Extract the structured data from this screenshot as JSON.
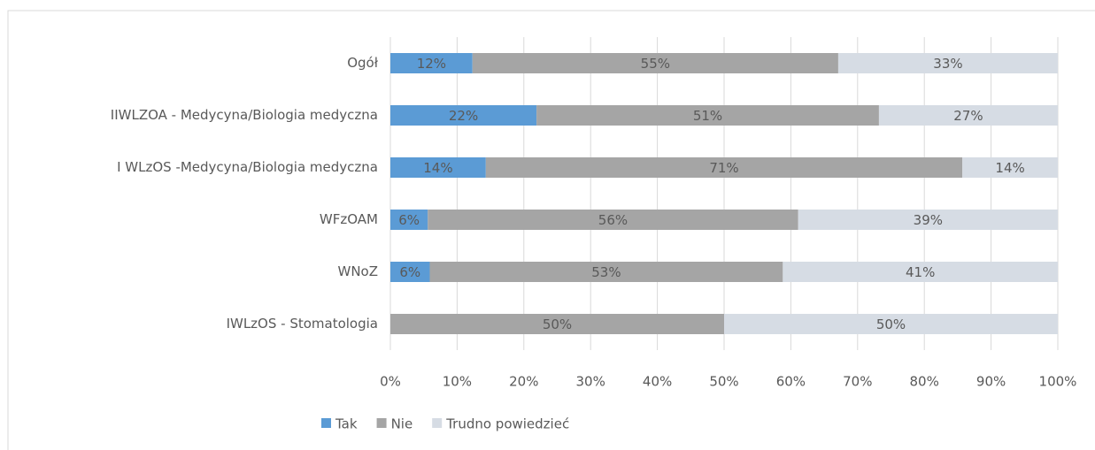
{
  "chart_data": {
    "type": "stacked-bar-horizontal",
    "categories": [
      "Ogół",
      "IIWLZOA - Medycyna/Biologia medyczna",
      "I WLzOS -Medycyna/Biologia medyczna",
      "WFzOAM",
      "WNoZ",
      "IWLzOS - Stomatologia"
    ],
    "series": [
      {
        "name": "Tak",
        "color": "#5b9bd5",
        "values": [
          12.3,
          21.9,
          14.3,
          5.6,
          5.9,
          0
        ],
        "value_labels": [
          "12%",
          "22%",
          "14%",
          "6%",
          "6%",
          null
        ]
      },
      {
        "name": "Nie",
        "color": "#a5a5a5",
        "values": [
          54.8,
          51.3,
          71.4,
          55.5,
          52.9,
          50
        ],
        "value_labels": [
          "55%",
          "51%",
          "71%",
          "56%",
          "53%",
          "50%"
        ]
      },
      {
        "name": "Trudno powiedzieć",
        "color": "#d6dce4",
        "values": [
          32.9,
          26.8,
          14.3,
          38.9,
          41.2,
          50
        ],
        "value_labels": [
          "33%",
          "27%",
          "14%",
          "39%",
          "41%",
          "50%"
        ]
      }
    ],
    "xlim": [
      0,
      100
    ],
    "xticks": [
      {
        "value": 0,
        "label": "0%"
      },
      {
        "value": 10,
        "label": "10%"
      },
      {
        "value": 20,
        "label": "20%"
      },
      {
        "value": 30,
        "label": "30%"
      },
      {
        "value": 40,
        "label": "40%"
      },
      {
        "value": 50,
        "label": "50%"
      },
      {
        "value": 60,
        "label": "60%"
      },
      {
        "value": 70,
        "label": "70%"
      },
      {
        "value": 80,
        "label": "80%"
      },
      {
        "value": 90,
        "label": "90%"
      },
      {
        "value": 100,
        "label": "100%"
      }
    ],
    "grid": true,
    "legend": "bottom"
  }
}
